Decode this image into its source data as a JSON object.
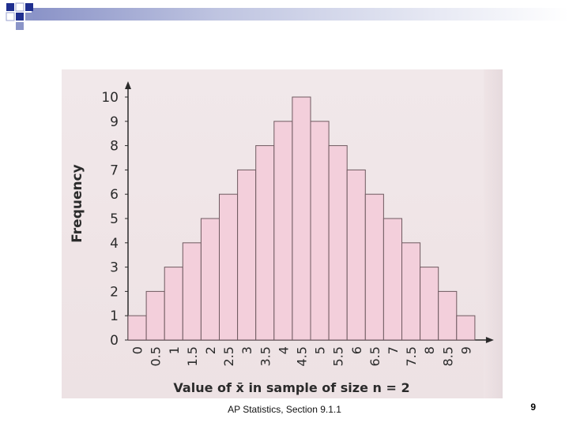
{
  "slide": {
    "footer": "AP Statistics, Section 9.1.1",
    "page_number": "9"
  },
  "colors": {
    "bar_fill": "#f3cfdb",
    "bar_stroke": "#6f5a60",
    "axis": "#2a2a2a",
    "text": "#2b2b2b",
    "deco_blue": "#1f2f8f"
  },
  "chart_data": {
    "type": "bar",
    "title": "",
    "xlabel": "Value of x̄ in sample of size n = 2",
    "ylabel": "Frequency",
    "categories": [
      "0",
      "0.5",
      "1",
      "1.5",
      "2",
      "2.5",
      "3",
      "3.5",
      "4",
      "4.5",
      "5",
      "5.5",
      "6",
      "6.5",
      "7",
      "7.5",
      "8",
      "8.5",
      "9"
    ],
    "values": [
      1,
      2,
      3,
      4,
      5,
      6,
      7,
      8,
      9,
      10,
      9,
      8,
      7,
      6,
      5,
      4,
      3,
      2,
      1
    ],
    "yticks": [
      "0",
      "1",
      "2",
      "3",
      "4",
      "5",
      "6",
      "7",
      "8",
      "9",
      "10"
    ],
    "ylim": [
      0,
      10
    ],
    "grid": false
  }
}
